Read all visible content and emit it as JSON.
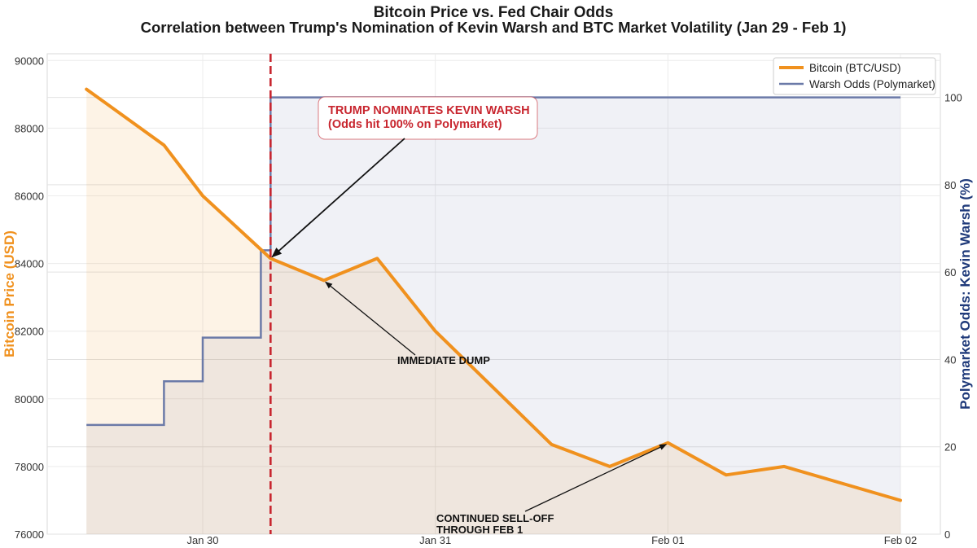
{
  "chart_data": {
    "type": "line",
    "title": "Bitcoin Price vs. Fed Chair Odds",
    "subtitle": "Correlation between Trump's Nomination of Kevin Warsh and BTC Market Volatility (Jan 29 - Feb 1)",
    "ylabel_left": "Bitcoin Price (USD)",
    "ylabel_right": "Polymarket Odds: Kevin Warsh (%)",
    "ylim_left": [
      76000,
      90200
    ],
    "ylim_right": [
      0,
      110
    ],
    "yticks_left": [
      76000,
      78000,
      80000,
      82000,
      84000,
      86000,
      88000,
      90000
    ],
    "yticks_right": [
      0,
      20,
      40,
      60,
      80,
      100
    ],
    "xlim_hours": [
      -10,
      0
    ],
    "x_ticks": [
      {
        "label": "Jan 30",
        "hour": 0
      },
      {
        "label": "Jan 31",
        "hour": 24
      },
      {
        "label": "Feb 01",
        "hour": 48
      },
      {
        "label": "Feb 02",
        "hour": 72
      }
    ],
    "grid": true,
    "legend_position": "top-right",
    "colors": {
      "bitcoin": "#f0911e",
      "warsh": "#6b7aa8",
      "event": "#c8262f",
      "title": "#1a1a1a",
      "left_axis": "#f0911e",
      "right_axis": "#1f3a7a"
    },
    "series": [
      {
        "name": "Bitcoin (BTC/USD)",
        "axis": "left",
        "points": [
          [
            -12,
            89150
          ],
          [
            -4,
            87500
          ],
          [
            0,
            86000
          ],
          [
            7,
            84150
          ],
          [
            12.5,
            83500
          ],
          [
            18,
            84150
          ],
          [
            24,
            82000
          ],
          [
            36,
            78650
          ],
          [
            42,
            78000
          ],
          [
            48,
            78700
          ],
          [
            54,
            77750
          ],
          [
            60,
            78000
          ],
          [
            72,
            77000
          ]
        ]
      },
      {
        "name": "Warsh Odds (Polymarket)",
        "axis": "right",
        "step": true,
        "points": [
          [
            -12,
            25
          ],
          [
            -4,
            25
          ],
          [
            -4,
            35
          ],
          [
            0,
            35
          ],
          [
            0,
            45
          ],
          [
            6,
            45
          ],
          [
            6,
            65
          ],
          [
            7,
            65
          ],
          [
            7,
            100
          ],
          [
            72,
            100
          ]
        ]
      }
    ],
    "event_line_hour": 7,
    "annotations": [
      {
        "id": "nominate",
        "lines": [
          "TRUMP NOMINATES KEVIN WARSH",
          "(Odds hit 100% on Polymarket)"
        ],
        "target_hour": 7,
        "target_value": 84150
      },
      {
        "id": "dump",
        "lines": [
          "IMMEDIATE DUMP"
        ],
        "target_hour": 12.5,
        "target_value": 83500
      },
      {
        "id": "selloff",
        "lines": [
          "CONTINUED SELL-OFF",
          "THROUGH FEB 1"
        ],
        "target_hour": 48,
        "target_value": 78700
      }
    ]
  }
}
